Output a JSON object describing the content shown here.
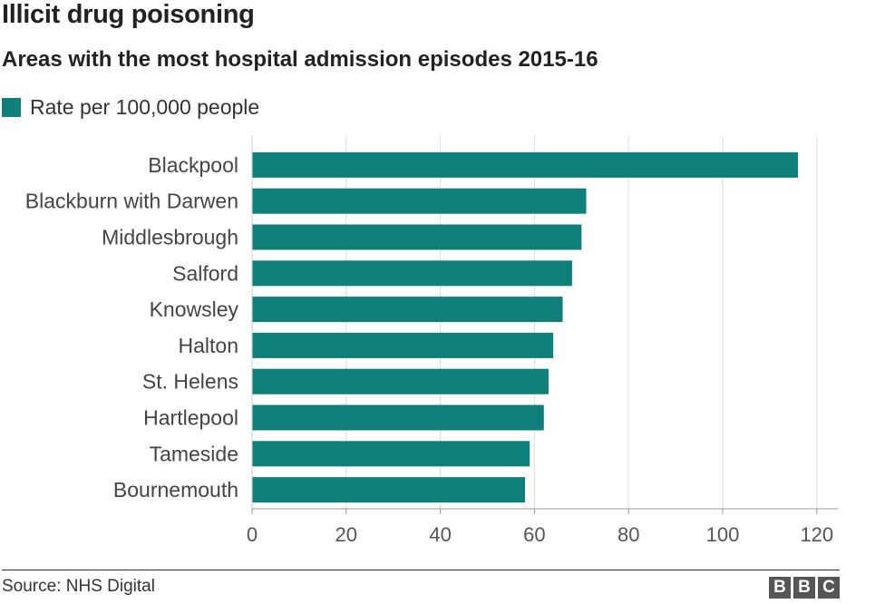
{
  "header": {
    "title": "Illicit drug poisoning",
    "subtitle": "Areas with the most hospital admission episodes 2015-16"
  },
  "chart_data": {
    "type": "bar",
    "orientation": "horizontal",
    "categories": [
      "Blackpool",
      "Blackburn with Darwen",
      "Middlesbrough",
      "Salford",
      "Knowsley",
      "Halton",
      "St. Helens",
      "Hartlepool",
      "Tameside",
      "Bournemouth"
    ],
    "series": [
      {
        "name": "Rate per 100,000 people",
        "values": [
          116,
          71,
          70,
          68,
          66,
          64,
          63,
          62,
          59,
          58
        ]
      }
    ],
    "xlim": [
      0,
      125
    ],
    "xticks": [
      0,
      20,
      40,
      60,
      80,
      100,
      120
    ],
    "grid": true,
    "legend_position": "top-left",
    "bar_color": "#0f7f79"
  },
  "footer": {
    "source": "Source: NHS Digital",
    "logo_letters": [
      "B",
      "B",
      "C"
    ]
  }
}
